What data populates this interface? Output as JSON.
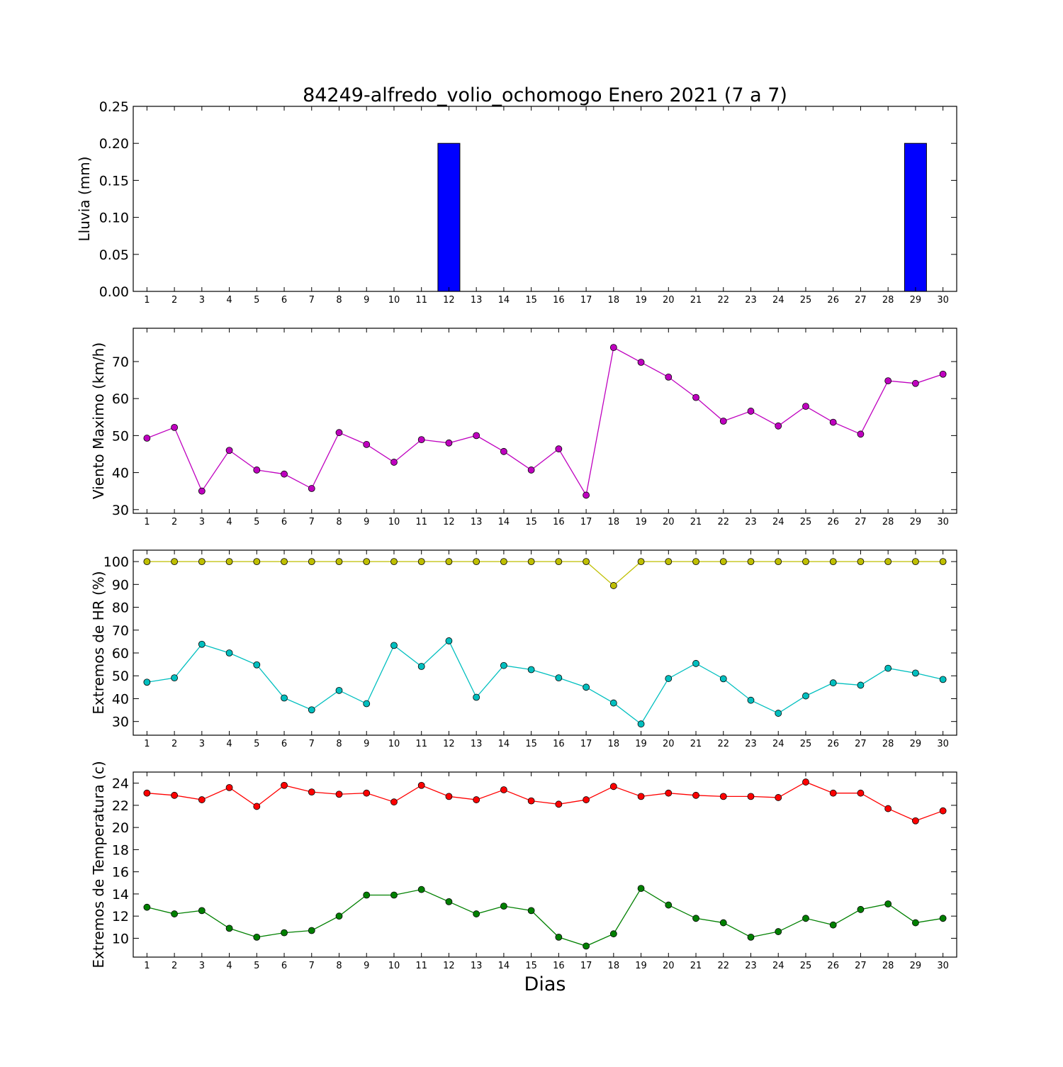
{
  "title": "84249-alfredo_volio_ochomogo Enero 2021  (7 a 7)",
  "xlabel": "Dias",
  "days": [
    1,
    2,
    3,
    4,
    5,
    6,
    7,
    8,
    9,
    10,
    11,
    12,
    13,
    14,
    15,
    16,
    17,
    18,
    19,
    20,
    21,
    22,
    23,
    24,
    25,
    26,
    27,
    28,
    29,
    30
  ],
  "colors": {
    "rain": "#0000ff",
    "wind": "#bf00bf",
    "hr_max": "#bfbf00",
    "hr_min": "#00bfbf",
    "temp_max": "#ff0000",
    "temp_min": "#008000"
  },
  "chart_data": [
    {
      "type": "bar",
      "ylabel": "Lluvia (mm)",
      "ylim": [
        0,
        0.25
      ],
      "yticks": [
        "0.00",
        "0.05",
        "0.10",
        "0.15",
        "0.20",
        "0.25"
      ],
      "x": [
        1,
        2,
        3,
        4,
        5,
        6,
        7,
        8,
        9,
        10,
        11,
        12,
        13,
        14,
        15,
        16,
        17,
        18,
        19,
        20,
        21,
        22,
        23,
        24,
        25,
        26,
        27,
        28,
        29,
        30
      ],
      "series": [
        {
          "color": "#0000ff",
          "values": [
            0,
            0,
            0,
            0,
            0,
            0,
            0,
            0,
            0,
            0,
            0,
            0.2,
            0,
            0,
            0,
            0,
            0,
            0,
            0,
            0,
            0,
            0,
            0,
            0,
            0,
            0,
            0,
            0,
            0.2,
            0
          ]
        }
      ]
    },
    {
      "type": "line",
      "ylabel": "Viento Maximo (km/h)",
      "ylim": [
        29,
        79
      ],
      "yticks": [
        "30",
        "40",
        "50",
        "60",
        "70"
      ],
      "x": [
        1,
        2,
        3,
        4,
        5,
        6,
        7,
        8,
        9,
        10,
        11,
        12,
        13,
        14,
        15,
        16,
        17,
        18,
        19,
        20,
        21,
        22,
        23,
        24,
        25,
        26,
        27,
        28,
        29,
        30
      ],
      "series": [
        {
          "color": "#bf00bf",
          "values": [
            49.3,
            52.2,
            35.0,
            46.0,
            40.7,
            39.6,
            35.7,
            50.8,
            47.6,
            42.8,
            48.9,
            48.0,
            50.0,
            45.7,
            40.7,
            46.4,
            33.9,
            73.8,
            69.8,
            65.8,
            60.3,
            53.9,
            56.6,
            52.6,
            57.9,
            53.6,
            50.4,
            64.8,
            64.1,
            66.6
          ]
        }
      ]
    },
    {
      "type": "line",
      "ylabel": "Extremos de HR (%)",
      "ylim": [
        24,
        105
      ],
      "yticks": [
        "30",
        "40",
        "50",
        "60",
        "70",
        "80",
        "90",
        "100"
      ],
      "x": [
        1,
        2,
        3,
        4,
        5,
        6,
        7,
        8,
        9,
        10,
        11,
        12,
        13,
        14,
        15,
        16,
        17,
        18,
        19,
        20,
        21,
        22,
        23,
        24,
        25,
        26,
        27,
        28,
        29,
        30
      ],
      "series": [
        {
          "color": "#bfbf00",
          "values": [
            100,
            100,
            100,
            100,
            100,
            100,
            100,
            100,
            100,
            100,
            100,
            100,
            100,
            100,
            100,
            100,
            100,
            89.5,
            100,
            100,
            100,
            100,
            100,
            100,
            100,
            100,
            100,
            100,
            100,
            100
          ]
        },
        {
          "color": "#00bfbf",
          "values": [
            47.2,
            49.1,
            63.8,
            60.0,
            54.8,
            40.3,
            35.1,
            43.6,
            37.8,
            63.3,
            54.1,
            65.3,
            40.6,
            54.5,
            52.7,
            49.1,
            45.0,
            38.1,
            28.9,
            48.8,
            55.4,
            48.7,
            39.3,
            33.6,
            41.2,
            46.9,
            45.9,
            53.3,
            51.2,
            48.4
          ]
        }
      ]
    },
    {
      "type": "line",
      "ylabel": "Extremos de Temperatura (c)",
      "ylim": [
        8.3,
        25.0
      ],
      "yticks": [
        "10",
        "12",
        "14",
        "16",
        "18",
        "20",
        "22",
        "24"
      ],
      "x": [
        1,
        2,
        3,
        4,
        5,
        6,
        7,
        8,
        9,
        10,
        11,
        12,
        13,
        14,
        15,
        16,
        17,
        18,
        19,
        20,
        21,
        22,
        23,
        24,
        25,
        26,
        27,
        28,
        29,
        30
      ],
      "series": [
        {
          "color": "#ff0000",
          "values": [
            23.1,
            22.9,
            22.5,
            23.6,
            21.9,
            23.8,
            23.2,
            23.0,
            23.1,
            22.3,
            23.8,
            22.8,
            22.5,
            23.4,
            22.4,
            22.1,
            22.5,
            23.7,
            22.8,
            23.1,
            22.9,
            22.8,
            22.8,
            22.7,
            24.1,
            23.1,
            23.1,
            21.7,
            20.6,
            21.5
          ]
        },
        {
          "color": "#008000",
          "values": [
            12.8,
            12.2,
            12.5,
            10.9,
            10.1,
            10.5,
            10.7,
            12.0,
            13.9,
            13.9,
            14.4,
            13.3,
            12.2,
            12.9,
            12.5,
            10.1,
            9.3,
            10.4,
            14.5,
            13.0,
            11.8,
            11.4,
            10.1,
            10.6,
            11.8,
            11.2,
            12.6,
            13.1,
            11.4,
            11.8
          ]
        }
      ]
    }
  ]
}
